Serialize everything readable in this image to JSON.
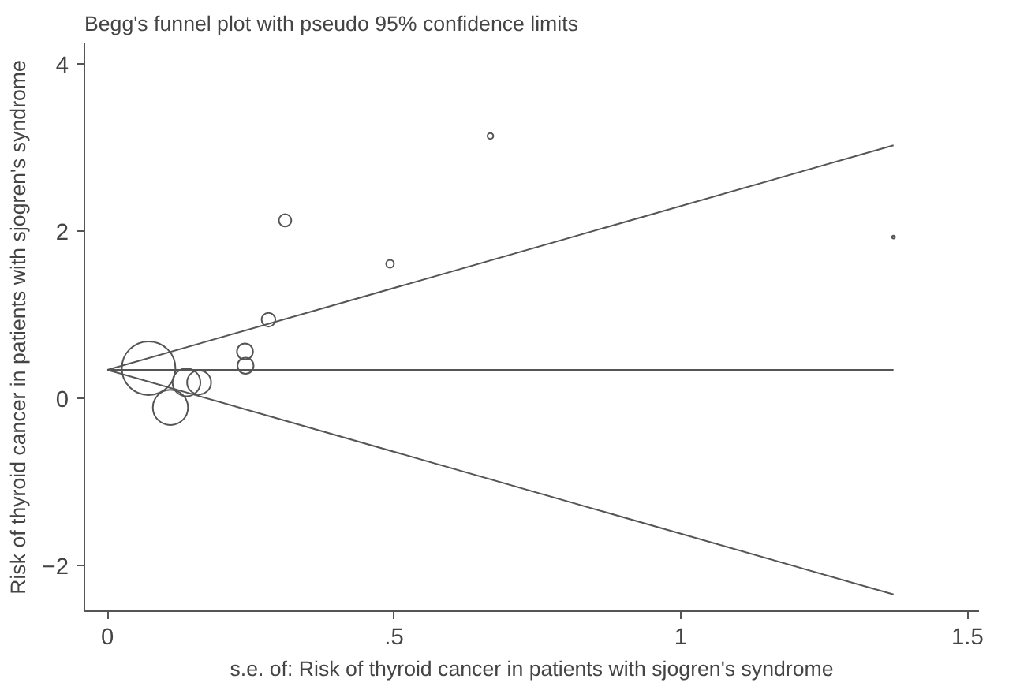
{
  "chart_data": {
    "type": "bubble",
    "title": "Begg's funnel plot with pseudo 95% confidence limits",
    "xlabel": "s.e. of: Risk of thyroid cancer in patients with sjogren's syndrome",
    "ylabel": "Risk of thyroid cancer in patients with sjogren's syndrome",
    "xlim": [
      -0.04,
      1.52
    ],
    "ylim": [
      -2.55,
      4.25
    ],
    "xticks": [
      0,
      {
        "value": 0.5,
        "label": ".5"
      },
      1,
      1.5
    ],
    "yticks": [
      -2,
      0,
      2,
      4
    ],
    "grid": false,
    "series": [
      {
        "marker": "circle",
        "color": "#555555",
        "x": [
          0.072,
          0.11,
          0.138,
          0.16,
          0.24,
          0.241,
          0.281,
          0.31,
          0.493,
          0.668,
          1.371
        ],
        "values": [
          0.36,
          -0.11,
          0.19,
          0.19,
          0.56,
          0.39,
          0.94,
          2.13,
          1.61,
          3.14,
          1.93
        ],
        "sizes": [
          1,
          0.43,
          0.27,
          0.2,
          0.09,
          0.09,
          0.066,
          0.054,
          0.021,
          0.012,
          0.0028
        ]
      },
      {
        "type": "line",
        "color": "#555555",
        "x": [
          0,
          1.371
        ],
        "values": [
          0.34,
          0.34
        ]
      },
      {
        "type": "line",
        "color": "#555555",
        "x": [
          0,
          1.371
        ],
        "values": [
          0.34,
          3.03
        ]
      },
      {
        "type": "line",
        "color": "#555555",
        "x": [
          0,
          1.371
        ],
        "values": [
          0.34,
          -2.35
        ]
      }
    ]
  }
}
